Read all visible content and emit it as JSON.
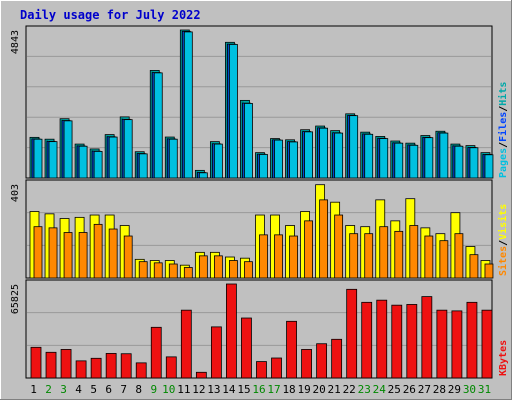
{
  "title": "Daily usage for July 2022",
  "colors": {
    "background": "#c0c0c0",
    "plot": "#c0c0c0",
    "title": "#0000cc",
    "pages": "#00c0e0",
    "hits": "#00a8a8",
    "files": "#0044ff",
    "visits": "#ffff00",
    "sites": "#ff8800",
    "kbytes": "#ee1111",
    "weekend_day": "#008800",
    "weekday": "#000000"
  },
  "chart_data": {
    "type": "bar",
    "days": [
      "1",
      "2",
      "3",
      "4",
      "5",
      "6",
      "7",
      "8",
      "9",
      "10",
      "11",
      "12",
      "13",
      "14",
      "15",
      "16",
      "17",
      "18",
      "19",
      "20",
      "21",
      "22",
      "23",
      "24",
      "25",
      "26",
      "27",
      "28",
      "29",
      "30",
      "31"
    ],
    "weekend_days": [
      "2",
      "3",
      "9",
      "10",
      "16",
      "17",
      "23",
      "24",
      "30",
      "31"
    ],
    "panels": [
      {
        "id": "hits-files-pages",
        "max_label": "4843",
        "ymax": 4843,
        "legend": [
          "Pages",
          "/",
          "Files",
          "/",
          "Hits"
        ],
        "series": [
          {
            "name": "Hits",
            "values": [
              1330,
              1270,
              1940,
              1110,
              950,
              1420,
              2000,
              860,
              3520,
              1340,
              4843,
              250,
              1190,
              4440,
              2540,
              830,
              1290,
              1250,
              1580,
              1700,
              1550,
              2100,
              1500,
              1360,
              1210,
              1140,
              1390,
              1530,
              1110,
              1060,
              830
            ]
          },
          {
            "name": "Files",
            "values": [
              1280,
              1200,
              1880,
              1050,
              880,
              1350,
              1920,
              800,
              3450,
              1280,
              4800,
              180,
              1120,
              4380,
              2450,
              780,
              1250,
              1190,
              1520,
              1640,
              1480,
              2050,
              1440,
              1300,
              1150,
              1080,
              1330,
              1480,
              1050,
              1000,
              770
            ]
          },
          {
            "name": "Pages",
            "values": [
              1270,
              1190,
              1870,
              1040,
              870,
              1340,
              1910,
              790,
              3440,
              1270,
              4780,
              170,
              1110,
              4370,
              2440,
              770,
              1240,
              1180,
              1510,
              1630,
              1470,
              2040,
              1430,
              1290,
              1140,
              1070,
              1320,
              1470,
              1040,
              990,
              760
            ]
          }
        ]
      },
      {
        "id": "visits-sites",
        "max_label": "403",
        "ymax": 403,
        "legend": [
          "Sites",
          "/",
          "Visits"
        ],
        "series": [
          {
            "name": "Visits",
            "values": [
              285,
              275,
              255,
              260,
              270,
              270,
              225,
              80,
              75,
              75,
              55,
              110,
              110,
              90,
              85,
              270,
              270,
              225,
              285,
              400,
              325,
              225,
              220,
              335,
              245,
              340,
              215,
              190,
              280,
              135,
              75
            ]
          },
          {
            "name": "Sites",
            "values": [
              220,
              215,
              195,
              195,
              230,
              210,
              180,
              70,
              65,
              60,
              45,
              95,
              95,
              75,
              70,
              185,
              185,
              180,
              245,
              335,
              270,
              190,
              190,
              220,
              200,
              225,
              180,
              160,
              190,
              100,
              60
            ]
          }
        ]
      },
      {
        "id": "kbytes",
        "max_label": "65825",
        "ymax": 65825,
        "legend": [
          "KBytes"
        ],
        "series": [
          {
            "name": "KBytes",
            "values": [
              21500,
              18000,
              20000,
              12000,
              13800,
              17200,
              17000,
              10600,
              35500,
              14800,
              47500,
              4000,
              35800,
              65825,
              42000,
              11500,
              14000,
              39700,
              20000,
              24000,
              27100,
              62100,
              53000,
              54500,
              51000,
              51500,
              57000,
              47500,
              47000,
              53000,
              47500
            ]
          }
        ]
      }
    ]
  }
}
